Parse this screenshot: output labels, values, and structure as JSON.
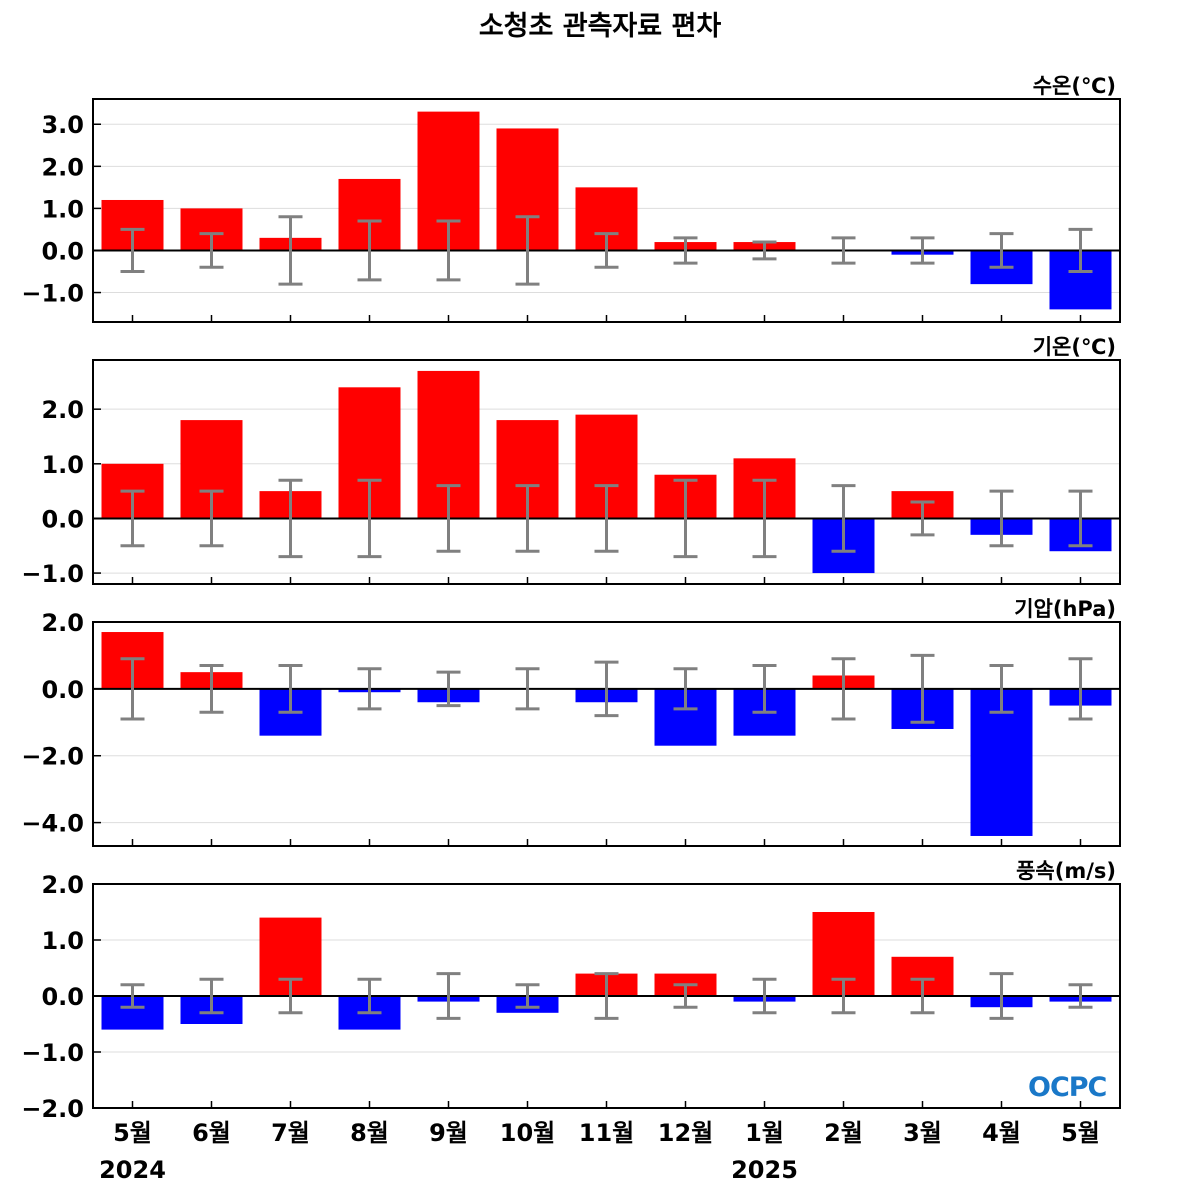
{
  "title": "소청초 관측자료 편차",
  "logo": "OCPC",
  "colors": {
    "positive": "#ff0000",
    "negative": "#0000ff",
    "errorbar": "#808080",
    "grid": "#dddddd"
  },
  "chart_data": {
    "type": "bar",
    "categories": [
      "5월",
      "6월",
      "7월",
      "8월",
      "9월",
      "10월",
      "11월",
      "12월",
      "1월",
      "2월",
      "3월",
      "4월",
      "5월"
    ],
    "years": [
      {
        "label": "2024",
        "category_index": 0
      },
      {
        "label": "2025",
        "category_index": 8
      }
    ],
    "panels": [
      {
        "name": "수온(℃)",
        "values": [
          1.2,
          1.0,
          0.3,
          1.7,
          3.3,
          2.9,
          1.5,
          0.2,
          0.2,
          0.0,
          -0.1,
          -0.8,
          -1.4
        ],
        "error": [
          0.5,
          0.4,
          0.8,
          0.7,
          0.7,
          0.8,
          0.4,
          0.3,
          0.2,
          0.3,
          0.3,
          0.4,
          0.5
        ],
        "ylim": [
          -1.7,
          3.6
        ],
        "yticks": [
          -1.0,
          0.0,
          1.0,
          2.0,
          3.0
        ],
        "ytick_labels": [
          "−1.0",
          "0.0",
          "1.0",
          "2.0",
          "3.0"
        ]
      },
      {
        "name": "기온(℃)",
        "values": [
          1.0,
          1.8,
          0.5,
          2.4,
          2.7,
          1.8,
          1.9,
          0.8,
          1.1,
          -1.0,
          0.5,
          -0.3,
          -0.6
        ],
        "error": [
          0.5,
          0.5,
          0.7,
          0.7,
          0.6,
          0.6,
          0.6,
          0.7,
          0.7,
          0.6,
          0.3,
          0.5,
          0.5
        ],
        "ylim": [
          -1.2,
          2.9
        ],
        "yticks": [
          -1.0,
          0.0,
          1.0,
          2.0
        ],
        "ytick_labels": [
          "−1.0",
          "0.0",
          "1.0",
          "2.0"
        ]
      },
      {
        "name": "기압(hPa)",
        "values": [
          1.7,
          0.5,
          -1.4,
          -0.1,
          -0.4,
          0.0,
          -0.4,
          -1.7,
          -1.4,
          0.4,
          -1.2,
          -4.4,
          -0.5
        ],
        "error": [
          0.9,
          0.7,
          0.7,
          0.6,
          0.5,
          0.6,
          0.8,
          0.6,
          0.7,
          0.9,
          1.0,
          0.7,
          0.9
        ],
        "ylim": [
          -4.7,
          2.0
        ],
        "yticks": [
          -4.0,
          -2.0,
          0.0,
          2.0
        ],
        "ytick_labels": [
          "−4.0",
          "−2.0",
          "0.0",
          "2.0"
        ]
      },
      {
        "name": "풍속(m/s)",
        "values": [
          -0.6,
          -0.5,
          1.4,
          -0.6,
          -0.1,
          -0.3,
          0.4,
          0.4,
          -0.1,
          1.5,
          0.7,
          -0.2,
          -0.1
        ],
        "error": [
          0.2,
          0.3,
          0.3,
          0.3,
          0.4,
          0.2,
          0.4,
          0.2,
          0.3,
          0.3,
          0.3,
          0.4,
          0.2
        ],
        "ylim": [
          -2.0,
          2.0
        ],
        "yticks": [
          -2.0,
          -1.0,
          0.0,
          1.0,
          2.0
        ],
        "ytick_labels": [
          "−2.0",
          "−1.0",
          "0.0",
          "1.0",
          "2.0"
        ]
      }
    ]
  }
}
